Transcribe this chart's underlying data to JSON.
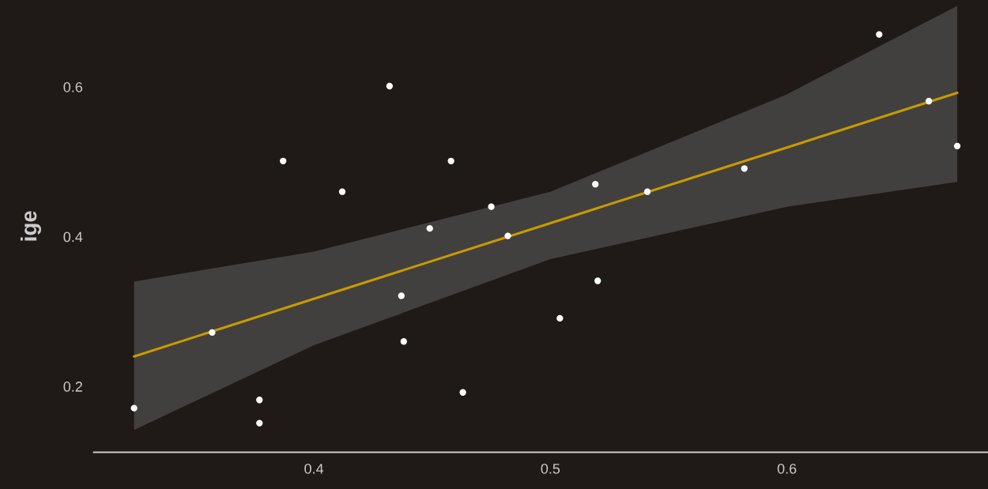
{
  "chart_data": {
    "type": "scatter",
    "ylabel": "ige",
    "xlim": [
      0.307,
      0.685
    ],
    "ylim": [
      0.112,
      0.716
    ],
    "xticks": [
      0.4,
      0.5,
      0.6
    ],
    "yticks": [
      0.2,
      0.4,
      0.6
    ],
    "grid": false,
    "series": [
      {
        "marker": "circle",
        "color": "#ffffff",
        "x": [
          0.324,
          0.357,
          0.377,
          0.377,
          0.387,
          0.412,
          0.432,
          0.437,
          0.438,
          0.449,
          0.458,
          0.463,
          0.475,
          0.482,
          0.504,
          0.519,
          0.52,
          0.541,
          0.582,
          0.639,
          0.66,
          0.672
        ],
        "values": [
          0.171,
          0.272,
          0.182,
          0.151,
          0.501,
          0.46,
          0.601,
          0.321,
          0.26,
          0.411,
          0.501,
          0.192,
          0.44,
          0.401,
          0.291,
          0.47,
          0.341,
          0.46,
          0.491,
          0.67,
          0.581,
          0.521
        ]
      },
      {
        "type": "line",
        "color": "#c89b00",
        "x": [
          0.324,
          0.4,
          0.5,
          0.6,
          0.672
        ],
        "values": [
          0.24,
          0.317,
          0.418,
          0.519,
          0.592
        ],
        "lower": [
          0.142,
          0.255,
          0.37,
          0.44,
          0.473
        ],
        "upper": [
          0.34,
          0.38,
          0.46,
          0.59,
          0.708
        ]
      }
    ]
  }
}
